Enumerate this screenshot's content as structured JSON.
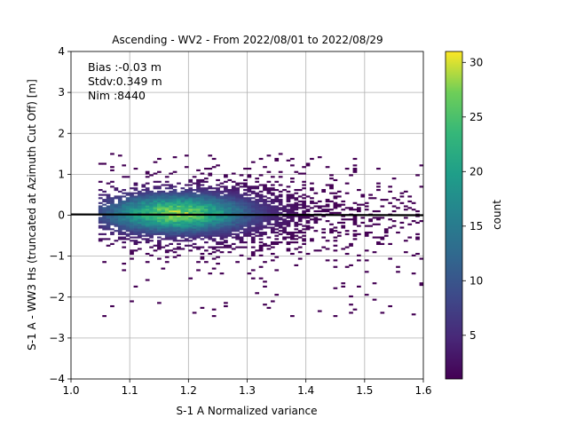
{
  "chart_data": {
    "type": "heatmap",
    "title": "Ascending - WV2 - From 2022/08/01 to 2022/08/29",
    "xlabel": "S-1 A Normalized variance",
    "ylabel": "S-1 A - WW3 Hs (truncated at Azimuth Cut Off) [m]",
    "xlim": [
      1.0,
      1.6
    ],
    "ylim": [
      -4,
      4
    ],
    "xticks": [
      "1.0",
      "1.1",
      "1.2",
      "1.3",
      "1.4",
      "1.5",
      "1.6"
    ],
    "yticks": [
      "−4",
      "−3",
      "−2",
      "−1",
      "0",
      "1",
      "2",
      "3",
      "4"
    ],
    "grid": true,
    "stats": [
      "Bias :-0.03 m",
      "Stdv:0.349 m",
      "Nim :8440"
    ],
    "colorbar": {
      "label": "count",
      "range": [
        1,
        31
      ],
      "ticks": [
        "5",
        "10",
        "15",
        "20",
        "25",
        "30"
      ],
      "colormap": "viridis"
    },
    "fit_line": {
      "x": [
        1.0,
        1.6
      ],
      "y": [
        0.02,
        0.0
      ],
      "color": "#000000"
    },
    "density": {
      "center": [
        1.18,
        0.05
      ],
      "peak_count": 31,
      "x_extent": [
        1.05,
        1.6
      ],
      "y_extent": [
        -2.5,
        1.5
      ]
    }
  }
}
